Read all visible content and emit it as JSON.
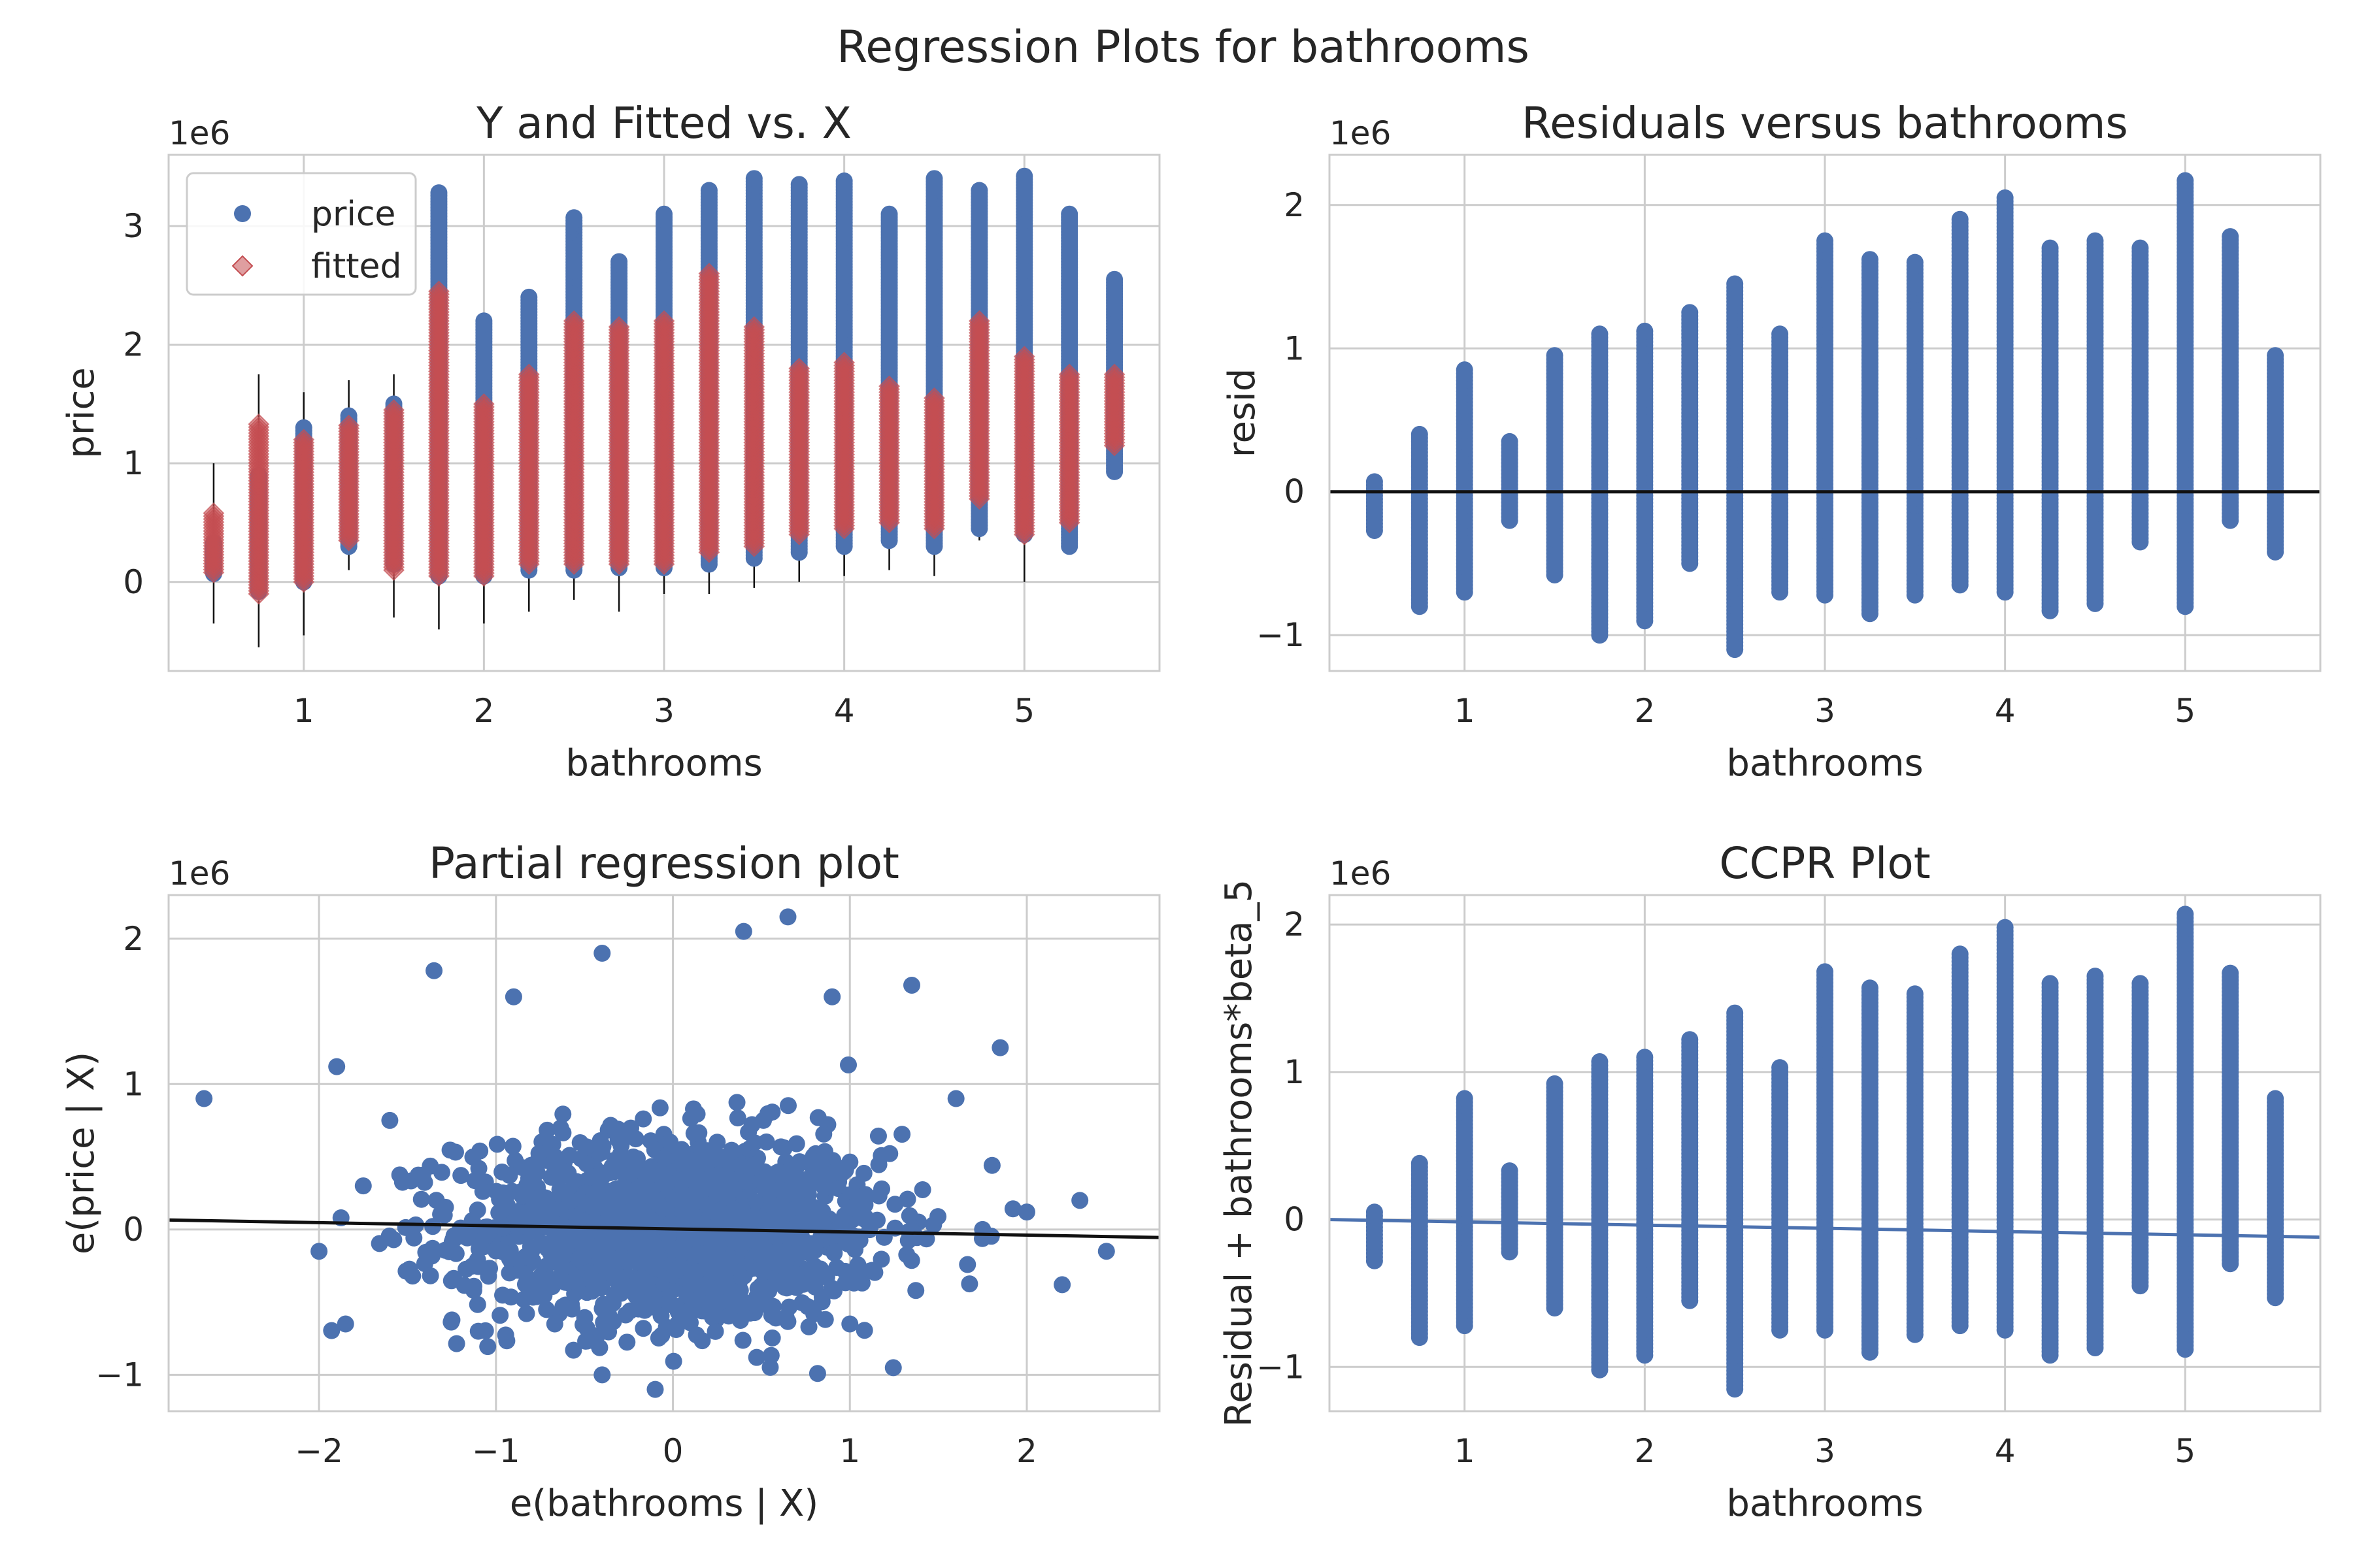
{
  "figure": {
    "suptitle": "Regression Plots for bathrooms"
  },
  "colors": {
    "blue": "#4c72b0",
    "red": "#c44e52",
    "black": "#111111",
    "grid": "#cccccc",
    "spine": "#cccccc",
    "background": "#ffffff"
  },
  "chart_data": [
    {
      "type": "scatter",
      "title": "Y and Fitted vs. X",
      "xlabel": "bathrooms",
      "ylabel": "price",
      "offset_label": "1e6",
      "xlim": [
        0.25,
        5.75
      ],
      "ylim": [
        -0.75,
        3.6
      ],
      "xticks": [
        1,
        2,
        3,
        4,
        5
      ],
      "xtick_labels": [
        "1",
        "2",
        "3",
        "4",
        "5"
      ],
      "yticks": [
        0,
        1,
        2,
        3
      ],
      "ytick_labels": [
        "0",
        "1",
        "2",
        "3"
      ],
      "grid": true,
      "legend": {
        "placement": "upper-left",
        "entries": [
          "price",
          "fitted"
        ]
      },
      "series": [
        {
          "name": "price",
          "marker": "circle",
          "color": "#4c72b0",
          "columns": [
            {
              "x": 0.5,
              "lo": 0.07,
              "hi": 0.33
            },
            {
              "x": 0.75,
              "lo": -0.08,
              "hi": 0.9
            },
            {
              "x": 1,
              "lo": 0.0,
              "hi": 1.3
            },
            {
              "x": 1.25,
              "lo": 0.3,
              "hi": 1.4
            },
            {
              "x": 1.5,
              "lo": 0.15,
              "hi": 1.5
            },
            {
              "x": 1.75,
              "lo": 0.05,
              "hi": 3.28
            },
            {
              "x": 2,
              "lo": 0.05,
              "hi": 2.2
            },
            {
              "x": 2.25,
              "lo": 0.1,
              "hi": 2.4
            },
            {
              "x": 2.5,
              "lo": 0.1,
              "hi": 3.07
            },
            {
              "x": 2.75,
              "lo": 0.12,
              "hi": 2.7
            },
            {
              "x": 3,
              "lo": 0.12,
              "hi": 3.1
            },
            {
              "x": 3.25,
              "lo": 0.15,
              "hi": 3.3
            },
            {
              "x": 3.5,
              "lo": 0.2,
              "hi": 3.4
            },
            {
              "x": 3.75,
              "lo": 0.25,
              "hi": 3.35
            },
            {
              "x": 4,
              "lo": 0.3,
              "hi": 3.38
            },
            {
              "x": 4.25,
              "lo": 0.35,
              "hi": 3.1
            },
            {
              "x": 4.5,
              "lo": 0.3,
              "hi": 3.4
            },
            {
              "x": 4.75,
              "lo": 0.45,
              "hi": 3.3
            },
            {
              "x": 5,
              "lo": 0.4,
              "hi": 3.42
            },
            {
              "x": 5.25,
              "lo": 0.3,
              "hi": 3.1
            },
            {
              "x": 5.5,
              "lo": 0.93,
              "hi": 2.55
            }
          ]
        },
        {
          "name": "fitted",
          "marker": "diamond",
          "color": "#c44e52",
          "columns": [
            {
              "x": 0.5,
              "lo": 0.08,
              "hi": 0.58
            },
            {
              "x": 0.75,
              "lo": -0.1,
              "hi": 1.33
            },
            {
              "x": 1,
              "lo": 0.0,
              "hi": 1.2
            },
            {
              "x": 1.25,
              "lo": 0.35,
              "hi": 1.32
            },
            {
              "x": 1.5,
              "lo": 0.1,
              "hi": 1.45
            },
            {
              "x": 1.75,
              "lo": 0.05,
              "hi": 2.45
            },
            {
              "x": 2,
              "lo": 0.05,
              "hi": 1.5
            },
            {
              "x": 2.25,
              "lo": 0.15,
              "hi": 1.75
            },
            {
              "x": 2.5,
              "lo": 0.15,
              "hi": 2.2
            },
            {
              "x": 2.75,
              "lo": 0.15,
              "hi": 2.15
            },
            {
              "x": 3,
              "lo": 0.15,
              "hi": 2.2
            },
            {
              "x": 3.25,
              "lo": 0.25,
              "hi": 2.6
            },
            {
              "x": 3.5,
              "lo": 0.3,
              "hi": 2.15
            },
            {
              "x": 3.75,
              "lo": 0.4,
              "hi": 1.8
            },
            {
              "x": 4,
              "lo": 0.45,
              "hi": 1.85
            },
            {
              "x": 4.25,
              "lo": 0.5,
              "hi": 1.65
            },
            {
              "x": 4.5,
              "lo": 0.45,
              "hi": 1.55
            },
            {
              "x": 4.75,
              "lo": 0.7,
              "hi": 2.2
            },
            {
              "x": 5,
              "lo": 0.4,
              "hi": 1.9
            },
            {
              "x": 5.25,
              "lo": 0.5,
              "hi": 1.75
            },
            {
              "x": 5.5,
              "lo": 1.15,
              "hi": 1.75
            }
          ]
        }
      ],
      "error_bars": [
        {
          "x": 0.5,
          "lo": -0.35,
          "hi": 1.0
        },
        {
          "x": 0.75,
          "lo": -0.55,
          "hi": 1.75
        },
        {
          "x": 1,
          "lo": -0.45,
          "hi": 1.6
        },
        {
          "x": 1.25,
          "lo": 0.1,
          "hi": 1.7
        },
        {
          "x": 1.5,
          "lo": -0.3,
          "hi": 1.75
        },
        {
          "x": 1.75,
          "lo": -0.4,
          "hi": 2.9
        },
        {
          "x": 2,
          "lo": -0.35,
          "hi": 1.8
        },
        {
          "x": 2.25,
          "lo": -0.25,
          "hi": 2.3
        },
        {
          "x": 2.5,
          "lo": -0.15,
          "hi": 2.6
        },
        {
          "x": 2.75,
          "lo": -0.25,
          "hi": 2.4
        },
        {
          "x": 3,
          "lo": -0.1,
          "hi": 2.6
        },
        {
          "x": 3.25,
          "lo": -0.1,
          "hi": 2.9
        },
        {
          "x": 3.5,
          "lo": -0.05,
          "hi": 2.6
        },
        {
          "x": 3.75,
          "lo": 0.0,
          "hi": 2.3
        },
        {
          "x": 4,
          "lo": 0.05,
          "hi": 2.5
        },
        {
          "x": 4.25,
          "lo": 0.1,
          "hi": 2.2
        },
        {
          "x": 4.5,
          "lo": 0.05,
          "hi": 2.4
        },
        {
          "x": 4.75,
          "lo": 0.35,
          "hi": 2.5
        },
        {
          "x": 5,
          "lo": 0.0,
          "hi": 2.3
        },
        {
          "x": 5.25,
          "lo": 0.25,
          "hi": 2.05
        },
        {
          "x": 5.5,
          "lo": 0.9,
          "hi": 2.0
        }
      ]
    },
    {
      "type": "scatter",
      "title": "Residuals versus bathrooms",
      "xlabel": "bathrooms",
      "ylabel": "resid",
      "offset_label": "1e6",
      "xlim": [
        0.25,
        5.75
      ],
      "ylim": [
        -1.25,
        2.35
      ],
      "xticks": [
        1,
        2,
        3,
        4,
        5
      ],
      "xtick_labels": [
        "1",
        "2",
        "3",
        "4",
        "5"
      ],
      "yticks": [
        -1,
        0,
        1,
        2
      ],
      "ytick_labels": [
        "−1",
        "0",
        "1",
        "2"
      ],
      "grid": true,
      "hline": 0,
      "series": [
        {
          "name": "",
          "marker": "circle",
          "color": "#4c72b0",
          "columns": [
            {
              "x": 0.5,
              "lo": -0.27,
              "hi": 0.07
            },
            {
              "x": 0.75,
              "lo": -0.8,
              "hi": 0.4
            },
            {
              "x": 1,
              "lo": -0.7,
              "hi": 0.85
            },
            {
              "x": 1.25,
              "lo": -0.2,
              "hi": 0.35
            },
            {
              "x": 1.5,
              "lo": -0.58,
              "hi": 0.95
            },
            {
              "x": 1.75,
              "lo": -1.0,
              "hi": 1.1
            },
            {
              "x": 2,
              "lo": -0.9,
              "hi": 1.12
            },
            {
              "x": 2.25,
              "lo": -0.5,
              "hi": 1.25
            },
            {
              "x": 2.5,
              "lo": -1.1,
              "hi": 1.45
            },
            {
              "x": 2.75,
              "lo": -0.7,
              "hi": 1.1
            },
            {
              "x": 3,
              "lo": -0.72,
              "hi": 1.75
            },
            {
              "x": 3.25,
              "lo": -0.85,
              "hi": 1.62
            },
            {
              "x": 3.5,
              "lo": -0.72,
              "hi": 1.6
            },
            {
              "x": 3.75,
              "lo": -0.65,
              "hi": 1.9
            },
            {
              "x": 4,
              "lo": -0.7,
              "hi": 2.05
            },
            {
              "x": 4.25,
              "lo": -0.83,
              "hi": 1.7
            },
            {
              "x": 4.5,
              "lo": -0.78,
              "hi": 1.75
            },
            {
              "x": 4.75,
              "lo": -0.35,
              "hi": 1.7
            },
            {
              "x": 5,
              "lo": -0.8,
              "hi": 2.17
            },
            {
              "x": 5.25,
              "lo": -0.2,
              "hi": 1.78
            },
            {
              "x": 5.5,
              "lo": -0.42,
              "hi": 0.95
            }
          ]
        }
      ]
    },
    {
      "type": "scatter",
      "title": "Partial regression plot",
      "xlabel": "e(bathrooms | X)",
      "ylabel": "e(price | X)",
      "offset_label": "1e6",
      "xlim": [
        -2.85,
        2.75
      ],
      "ylim": [
        -1.25,
        2.3
      ],
      "xticks": [
        -2,
        -1,
        0,
        1,
        2
      ],
      "xtick_labels": [
        "−2",
        "−1",
        "0",
        "1",
        "2"
      ],
      "yticks": [
        -1,
        0,
        1,
        2
      ],
      "ytick_labels": [
        "−1",
        "0",
        "1",
        "2"
      ],
      "grid": true,
      "fit_line": {
        "x": [
          -2.85,
          2.75
        ],
        "y": [
          0.065,
          -0.055
        ]
      },
      "cloud": {
        "center": [
          0.0,
          0.0
        ],
        "sd_x": 0.6,
        "sd_y": 0.33
      },
      "outliers": [
        [
          -2.65,
          0.9
        ],
        [
          -1.9,
          1.12
        ],
        [
          -1.85,
          -0.65
        ],
        [
          -2.0,
          -0.15
        ],
        [
          -1.35,
          1.78
        ],
        [
          -0.4,
          1.9
        ],
        [
          0.4,
          2.05
        ],
        [
          0.65,
          2.15
        ],
        [
          1.35,
          1.68
        ],
        [
          1.85,
          1.25
        ],
        [
          2.45,
          -0.15
        ],
        [
          2.2,
          -0.38
        ],
        [
          -0.1,
          -1.1
        ],
        [
          -0.4,
          -1.0
        ],
        [
          2.0,
          0.12
        ],
        [
          1.6,
          0.9
        ],
        [
          -1.6,
          0.75
        ],
        [
          0.9,
          1.6
        ],
        [
          -0.9,
          1.6
        ],
        [
          1.0,
          -0.65
        ],
        [
          -1.1,
          -0.7
        ],
        [
          2.3,
          0.2
        ],
        [
          -1.75,
          0.3
        ],
        [
          1.75,
          0.0
        ]
      ]
    },
    {
      "type": "scatter",
      "title": "CCPR Plot",
      "xlabel": "bathrooms",
      "ylabel": "Residual + bathrooms*beta_5",
      "offset_label": "1e6",
      "xlim": [
        0.25,
        5.75
      ],
      "ylim": [
        -1.3,
        2.2
      ],
      "xticks": [
        1,
        2,
        3,
        4,
        5
      ],
      "xtick_labels": [
        "1",
        "2",
        "3",
        "4",
        "5"
      ],
      "yticks": [
        -1,
        0,
        1,
        2
      ],
      "ytick_labels": [
        "−1",
        "0",
        "1",
        "2"
      ],
      "grid": true,
      "fit_line": {
        "x": [
          0.25,
          5.75
        ],
        "y": [
          0.0,
          -0.12
        ]
      },
      "series": [
        {
          "name": "",
          "marker": "circle",
          "color": "#4c72b0",
          "columns": [
            {
              "x": 0.5,
              "lo": -0.28,
              "hi": 0.05
            },
            {
              "x": 0.75,
              "lo": -0.8,
              "hi": 0.38
            },
            {
              "x": 1,
              "lo": -0.72,
              "hi": 0.82
            },
            {
              "x": 1.25,
              "lo": -0.22,
              "hi": 0.33
            },
            {
              "x": 1.5,
              "lo": -0.6,
              "hi": 0.92
            },
            {
              "x": 1.75,
              "lo": -1.02,
              "hi": 1.07
            },
            {
              "x": 2,
              "lo": -0.92,
              "hi": 1.1
            },
            {
              "x": 2.25,
              "lo": -0.55,
              "hi": 1.22
            },
            {
              "x": 2.5,
              "lo": -1.15,
              "hi": 1.4
            },
            {
              "x": 2.75,
              "lo": -0.75,
              "hi": 1.03
            },
            {
              "x": 3,
              "lo": -0.75,
              "hi": 1.68
            },
            {
              "x": 3.25,
              "lo": -0.9,
              "hi": 1.57
            },
            {
              "x": 3.5,
              "lo": -0.78,
              "hi": 1.53
            },
            {
              "x": 3.75,
              "lo": -0.72,
              "hi": 1.8
            },
            {
              "x": 4,
              "lo": -0.75,
              "hi": 1.98
            },
            {
              "x": 4.25,
              "lo": -0.92,
              "hi": 1.6
            },
            {
              "x": 4.5,
              "lo": -0.87,
              "hi": 1.65
            },
            {
              "x": 4.75,
              "lo": -0.45,
              "hi": 1.6
            },
            {
              "x": 5,
              "lo": -0.88,
              "hi": 2.07
            },
            {
              "x": 5.25,
              "lo": -0.3,
              "hi": 1.67
            },
            {
              "x": 5.5,
              "lo": -0.53,
              "hi": 0.82
            }
          ]
        }
      ]
    }
  ]
}
